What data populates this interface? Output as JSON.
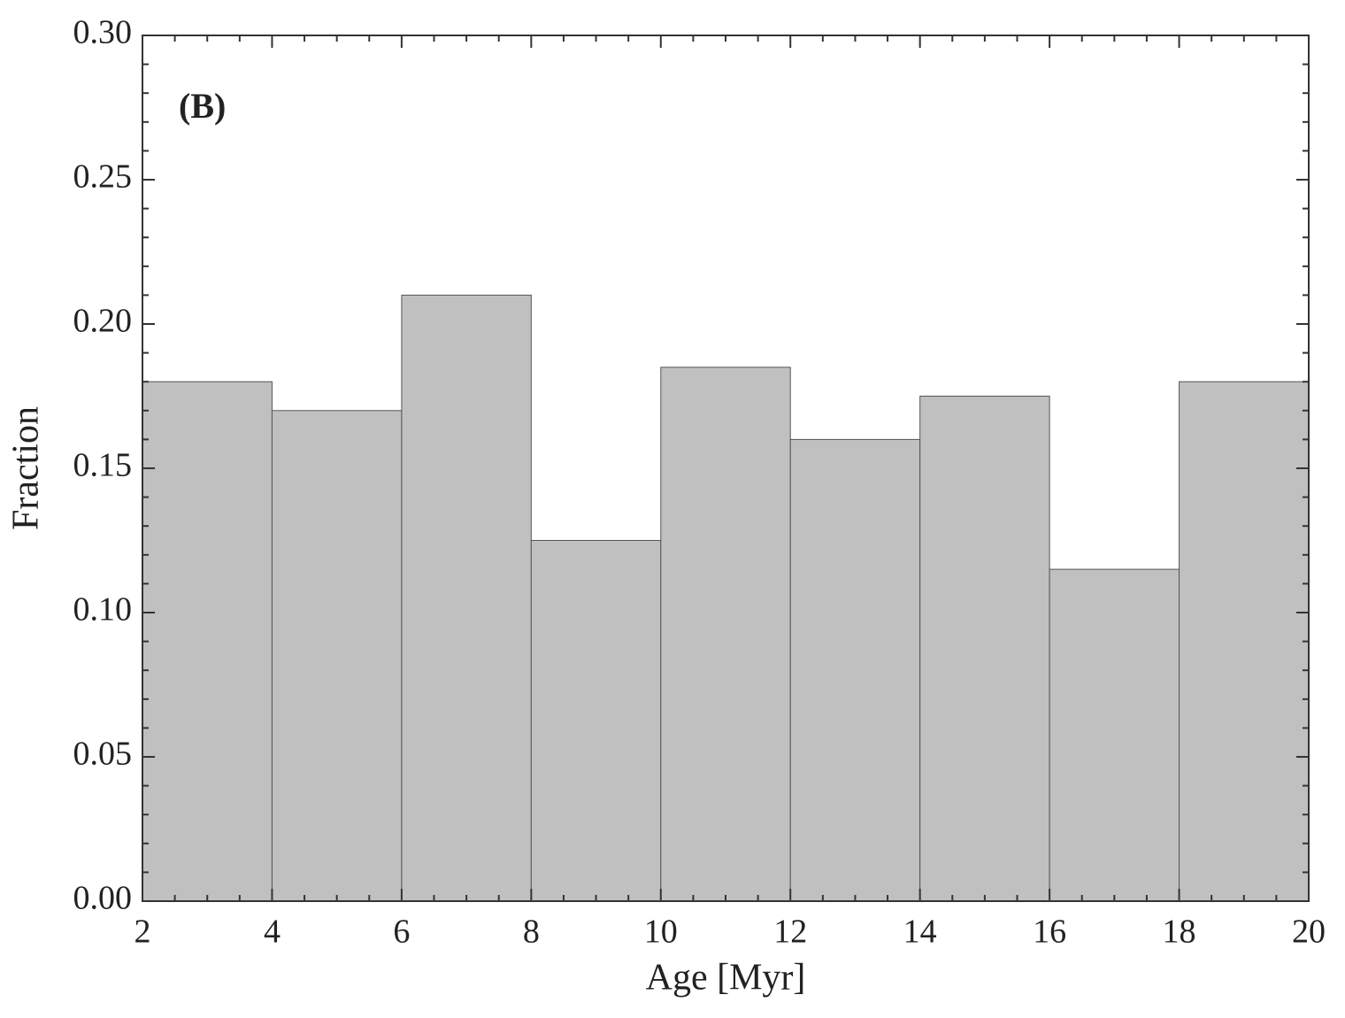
{
  "chart_data": {
    "type": "histogram",
    "annotation": "(B)",
    "xlabel": "Age [Myr]",
    "ylabel": "Fraction",
    "bins": [
      2,
      4,
      6,
      8,
      10,
      12,
      14,
      16,
      18,
      20
    ],
    "values": [
      0.18,
      0.17,
      0.21,
      0.125,
      0.185,
      0.16,
      0.175,
      0.115,
      0.18
    ],
    "color": "#c0c0c0",
    "edgecolor": "#555555",
    "xlim": [
      2,
      20
    ],
    "xticks": [
      2,
      4,
      6,
      8,
      10,
      12,
      14,
      16,
      18,
      20
    ],
    "ylim": [
      0,
      0.3
    ],
    "yticks": [
      {
        "value": 0,
        "label": "0.00"
      },
      {
        "value": 0.05,
        "label": "0.05"
      },
      {
        "value": 0.1,
        "label": "0.10"
      },
      {
        "value": 0.15,
        "label": "0.15"
      },
      {
        "value": 0.2,
        "label": "0.20"
      },
      {
        "value": 0.25,
        "label": "0.25"
      },
      {
        "value": 0.3,
        "label": "0.30"
      }
    ]
  }
}
